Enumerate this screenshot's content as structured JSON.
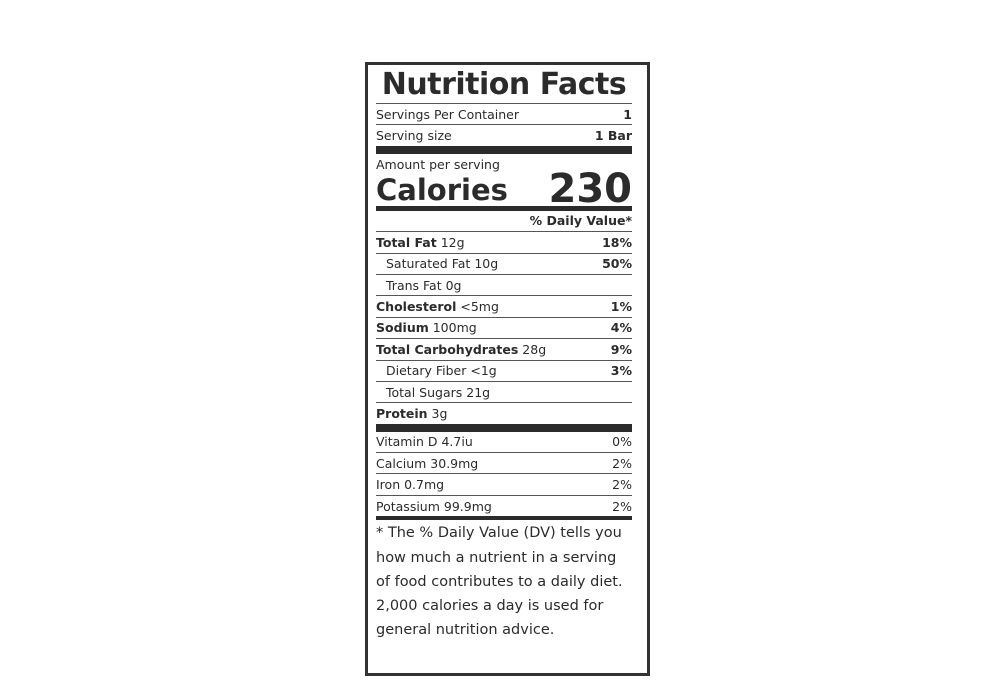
{
  "title": "Nutrition Facts",
  "servings": {
    "label": "Servings Per Container",
    "value": "1"
  },
  "serving_size": {
    "label": "Serving size",
    "value": "1 Bar"
  },
  "amount_label": "Amount per serving",
  "calories": {
    "label": "Calories",
    "value": "230"
  },
  "dv_header": "% Daily Value*",
  "nutrients": [
    {
      "name": "Total Fat",
      "amount": "12g",
      "dv": "18%"
    },
    {
      "name": "Saturated Fat",
      "amount": "10g",
      "dv": "50%"
    },
    {
      "name": "Trans Fat",
      "amount": "0g",
      "dv": ""
    },
    {
      "name": "Cholesterol",
      "amount": "<5mg",
      "dv": "1%"
    },
    {
      "name": "Sodium",
      "amount": "100mg",
      "dv": "4%"
    },
    {
      "name": "Total Carbohydrates",
      "amount": "28g",
      "dv": "9%"
    },
    {
      "name": "Dietary Fiber",
      "amount": "<1g",
      "dv": "3%"
    },
    {
      "name": "Total Sugars",
      "amount": "21g",
      "dv": ""
    },
    {
      "name": "Protein",
      "amount": "3g",
      "dv": ""
    }
  ],
  "vitamins": [
    {
      "name": "Vitamin D",
      "amount": "4.7iu",
      "dv": "0%"
    },
    {
      "name": "Calcium",
      "amount": "30.9mg",
      "dv": "2%"
    },
    {
      "name": "Iron",
      "amount": "0.7mg",
      "dv": "2%"
    },
    {
      "name": "Potassium",
      "amount": "99.9mg",
      "dv": "2%"
    }
  ],
  "footnote": "* The % Daily Value (DV) tells you how much a nutrient in a serving of food contributes to a daily diet. 2,000 calories a day is used for general nutrition advice."
}
